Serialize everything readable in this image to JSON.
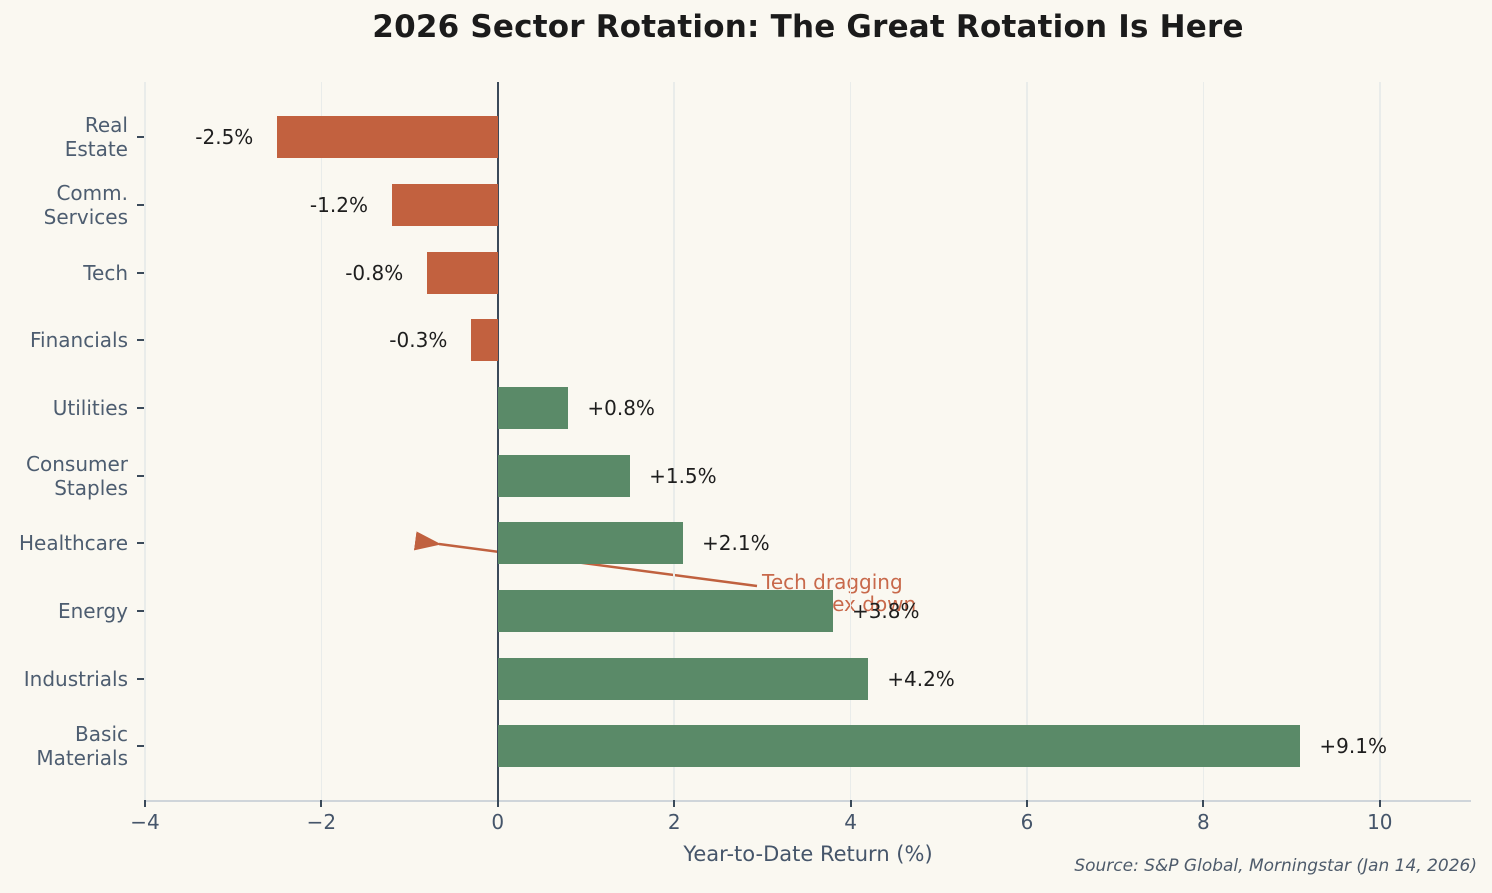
{
  "title": "2026 Sector Rotation: The Great Rotation Is Here",
  "source": "Source: S&P Global, Morningstar (Jan 14, 2026)",
  "chart_data": {
    "type": "bar",
    "orientation": "horizontal",
    "title": "2026 Sector Rotation: The Great Rotation Is Here",
    "xlabel": "Year-to-Date Return (%)",
    "ylabel": "",
    "categories": [
      "Real\nEstate",
      "Comm.\nServices",
      "Tech",
      "Financials",
      "Utilities",
      "Consumer\nStaples",
      "Healthcare",
      "Energy",
      "Industrials",
      "Basic\nMaterials"
    ],
    "values": [
      -2.5,
      -1.2,
      -0.8,
      -0.3,
      0.8,
      1.5,
      2.1,
      3.8,
      4.2,
      9.1
    ],
    "value_labels": [
      "-2.5%",
      "-1.2%",
      "-0.8%",
      "-0.3%",
      "+0.8%",
      "+1.5%",
      "+2.1%",
      "+3.8%",
      "+4.2%",
      "+9.1%"
    ],
    "xlim": [
      -4,
      11
    ],
    "xticks": [
      -4,
      -2,
      0,
      2,
      4,
      6,
      8,
      10
    ],
    "xtick_labels": [
      "−4",
      "−2",
      "0",
      "2",
      "4",
      "6",
      "8",
      "10"
    ],
    "grid": "vertical",
    "legend": "none",
    "colors": {
      "positive_bar": "#5A8A68",
      "negative_bar": "#C2613F",
      "zero_line": "#3B4A5A",
      "annotation": "#C8694B",
      "background": "#FAF8F1"
    },
    "annotation": {
      "text": "Tech dragging\nthe index down",
      "points_to_category": "Healthcare"
    }
  }
}
